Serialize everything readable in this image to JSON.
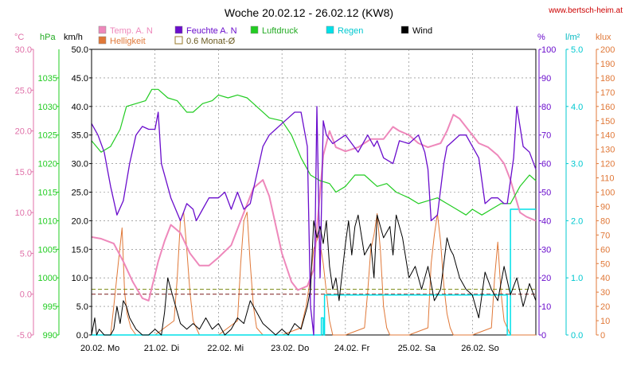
{
  "header": {
    "title": "Woche 20.02.12 - 26.02.12 (KW8)",
    "watermark": "www.bertsch-heim.at"
  },
  "chart_data": {
    "type": "line",
    "grid": true,
    "legend_placement": "top",
    "axes": {
      "temp": {
        "unit": "°C",
        "color": "#e070a8",
        "ylim": [
          -5,
          30
        ],
        "ticks": [
          "-5.0",
          "0.0",
          "5.0",
          "10.0",
          "15.0",
          "20.0",
          "25.0",
          "30.0"
        ]
      },
      "pressure": {
        "unit": "hPa",
        "color": "#22cc22",
        "ylim": [
          990,
          1040
        ],
        "ticks": [
          "990",
          "995",
          "1000",
          "1005",
          "1010",
          "1015",
          "1020",
          "1025",
          "1030",
          "1035"
        ]
      },
      "wind": {
        "unit": "km/h",
        "color": "#000000",
        "ylim": [
          0,
          50
        ],
        "ticks": [
          "0.0",
          "5.0",
          "10.0",
          "15.0",
          "20.0",
          "25.0",
          "30.0",
          "35.0",
          "40.0",
          "45.0",
          "50.0"
        ]
      },
      "humidity": {
        "unit": "%",
        "color": "#6a0dcc",
        "ylim": [
          0,
          100
        ],
        "ticks": [
          "0",
          "10",
          "20",
          "30",
          "40",
          "50",
          "60",
          "70",
          "80",
          "90",
          "100"
        ]
      },
      "rain": {
        "unit": "l/m²",
        "color": "#00c8d0",
        "ylim": [
          0,
          5
        ],
        "ticks": [
          "0.0",
          "1.0",
          "2.0",
          "3.0",
          "4.0",
          "5.0"
        ]
      },
      "lux": {
        "unit": "klux",
        "color": "#e07838",
        "ylim": [
          0,
          200
        ],
        "ticks": [
          "0",
          "10",
          "20",
          "30",
          "40",
          "50",
          "60",
          "70",
          "80",
          "90",
          "100",
          "110",
          "120",
          "130",
          "140",
          "150",
          "160",
          "170",
          "180",
          "190",
          "200"
        ]
      }
    },
    "x_ticks": [
      "20.02.",
      "Mo",
      "21.02.",
      "Di",
      "22.02.",
      "Mi",
      "23.02.",
      "Do",
      "24.02.",
      "Fr",
      "25.02.",
      "Sa",
      "26.02.",
      "So"
    ],
    "legend": [
      {
        "label": "Temp. A. N",
        "color": "#ee88bb"
      },
      {
        "label": "Feuchte A. N",
        "color": "#6a0dcc"
      },
      {
        "label": "Luftdruck",
        "color": "#22cc22"
      },
      {
        "label": "Regen",
        "color": "#00e0e8"
      },
      {
        "label": "Wind",
        "color": "#000000"
      },
      {
        "label": "Helligkeit",
        "color": "#e07838"
      },
      {
        "label": "0.6 Monat-Ø",
        "color": "#9a7a2a"
      }
    ],
    "series": [
      {
        "name": "Temp. A. N",
        "axis": "temp",
        "color": "#ee88bb",
        "width": 2,
        "x": [
          0,
          0.15,
          0.35,
          0.5,
          0.65,
          0.8,
          0.9,
          1.05,
          1.15,
          1.25,
          1.4,
          1.55,
          1.7,
          1.85,
          2.0,
          2.2,
          2.35,
          2.55,
          2.7,
          2.8,
          3.0,
          3.15,
          3.25,
          3.4,
          3.5,
          3.55,
          3.65,
          3.75,
          3.85,
          4.0,
          4.2,
          4.4,
          4.6,
          4.75,
          4.85,
          5.0,
          5.15,
          5.3,
          5.5,
          5.6,
          5.7,
          5.8,
          5.95,
          6.1,
          6.25,
          6.4,
          6.5,
          6.6,
          6.75,
          6.85,
          7.0
        ],
        "values": [
          7,
          6.8,
          6.2,
          4,
          1.5,
          -0.5,
          -0.8,
          4,
          6.5,
          8.5,
          7.5,
          5,
          3.5,
          3.5,
          4.5,
          6,
          9,
          13,
          14,
          12,
          5,
          1.5,
          0.5,
          1,
          3,
          8,
          17,
          20,
          18,
          17.5,
          18,
          19,
          19,
          20.5,
          20,
          19.5,
          18.5,
          18,
          18.5,
          20,
          22,
          21.5,
          20,
          18.5,
          18,
          17,
          16,
          14,
          10,
          9.5,
          9
        ]
      },
      {
        "name": "Feuchte A. N",
        "axis": "humidity",
        "color": "#6a0dcc",
        "width": 1.3,
        "x": [
          0,
          0.1,
          0.2,
          0.3,
          0.4,
          0.5,
          0.6,
          0.7,
          0.8,
          0.9,
          1.0,
          1.05,
          1.1,
          1.25,
          1.4,
          1.5,
          1.6,
          1.65,
          1.75,
          1.85,
          2.0,
          2.1,
          2.2,
          2.3,
          2.4,
          2.5,
          2.6,
          2.7,
          2.8,
          2.9,
          3.0,
          3.1,
          3.2,
          3.3,
          3.4,
          3.45,
          3.5,
          3.55,
          3.6,
          3.65,
          3.7,
          3.8,
          4.0,
          4.2,
          4.35,
          4.45,
          4.5,
          4.6,
          4.75,
          4.85,
          5.0,
          5.15,
          5.25,
          5.3,
          5.35,
          5.45,
          5.55,
          5.6,
          5.7,
          5.8,
          5.9,
          6.0,
          6.1,
          6.2,
          6.3,
          6.4,
          6.5,
          6.55,
          6.6,
          6.65,
          6.7,
          6.8,
          6.9,
          7.0
        ],
        "values": [
          74,
          70,
          64,
          52,
          42,
          47,
          60,
          70,
          73,
          72,
          72,
          78,
          60,
          48,
          40,
          46,
          44,
          40,
          44,
          48,
          48,
          50,
          44,
          50,
          44,
          46,
          56,
          66,
          70,
          72,
          74,
          76,
          78,
          78,
          66,
          10,
          0,
          80,
          20,
          75,
          70,
          67,
          70,
          64,
          70,
          66,
          68,
          62,
          60,
          68,
          67,
          70,
          64,
          58,
          40,
          42,
          60,
          66,
          68,
          70,
          70,
          66,
          62,
          46,
          48,
          48,
          46,
          46,
          54,
          62,
          80,
          66,
          64,
          58
        ]
      },
      {
        "name": "Luftdruck",
        "axis": "pressure",
        "color": "#22cc22",
        "width": 1.2,
        "x": [
          0,
          0.15,
          0.3,
          0.45,
          0.55,
          0.7,
          0.85,
          0.95,
          1.05,
          1.2,
          1.35,
          1.5,
          1.6,
          1.75,
          1.9,
          2.0,
          2.15,
          2.3,
          2.45,
          2.6,
          2.8,
          3.0,
          3.15,
          3.3,
          3.45,
          3.6,
          3.75,
          3.85,
          4.0,
          4.15,
          4.3,
          4.5,
          4.65,
          4.8,
          5.0,
          5.15,
          5.3,
          5.45,
          5.6,
          5.75,
          5.9,
          6.0,
          6.15,
          6.3,
          6.45,
          6.6,
          6.75,
          6.9,
          7.0
        ],
        "values": [
          1024,
          1022,
          1023,
          1026,
          1030,
          1030.5,
          1031,
          1033,
          1033,
          1031.5,
          1031,
          1029,
          1029,
          1030.5,
          1031,
          1032,
          1031.5,
          1032,
          1031.5,
          1030,
          1028,
          1027.5,
          1025,
          1021,
          1018,
          1017,
          1016.5,
          1015,
          1016,
          1018,
          1018,
          1016,
          1016.5,
          1015,
          1014,
          1013,
          1013.5,
          1014,
          1013,
          1012,
          1011,
          1012,
          1011,
          1012,
          1013,
          1013,
          1016,
          1018,
          1017
        ]
      },
      {
        "name": "Regen",
        "axis": "rain",
        "color": "#00e0e8",
        "width": 1.5,
        "step": true,
        "x": [
          0,
          3.62,
          3.62,
          3.65,
          3.65,
          3.67,
          3.67,
          6.55,
          6.55,
          6.6,
          6.6,
          6.65,
          6.65,
          7.0
        ],
        "values": [
          0,
          0,
          0.3,
          0.3,
          0,
          0,
          0.7,
          0.7,
          0,
          0,
          2.2,
          2.2,
          2.2,
          2.2
        ]
      },
      {
        "name": "Wind",
        "axis": "wind",
        "color": "#000000",
        "width": 1,
        "x": [
          0,
          0.05,
          0.08,
          0.12,
          0.2,
          0.3,
          0.35,
          0.4,
          0.45,
          0.5,
          0.55,
          0.6,
          0.65,
          0.7,
          0.8,
          0.9,
          1.0,
          1.1,
          1.15,
          1.2,
          1.25,
          1.3,
          1.35,
          1.4,
          1.5,
          1.6,
          1.7,
          1.8,
          1.9,
          2.0,
          2.1,
          2.2,
          2.3,
          2.4,
          2.5,
          2.6,
          2.7,
          2.8,
          2.9,
          3.0,
          3.1,
          3.2,
          3.3,
          3.4,
          3.45,
          3.5,
          3.55,
          3.6,
          3.65,
          3.7,
          3.75,
          3.8,
          3.85,
          3.9,
          4.0,
          4.05,
          4.1,
          4.15,
          4.2,
          4.3,
          4.4,
          4.45,
          4.5,
          4.6,
          4.7,
          4.75,
          4.8,
          4.9,
          5.0,
          5.1,
          5.2,
          5.3,
          5.4,
          5.5,
          5.6,
          5.65,
          5.7,
          5.8,
          5.9,
          6.0,
          6.1,
          6.2,
          6.3,
          6.4,
          6.5,
          6.6,
          6.7,
          6.8,
          6.9,
          7.0
        ],
        "values": [
          0,
          3,
          0,
          1,
          0,
          0,
          1,
          5,
          2,
          6,
          5,
          3,
          2,
          1,
          0,
          0,
          1,
          0,
          4,
          10,
          8,
          6,
          4,
          2,
          1,
          2,
          1,
          3,
          1,
          2,
          0,
          1,
          3,
          2,
          6,
          4,
          2,
          1,
          0,
          1,
          0,
          2,
          1,
          5,
          8,
          20,
          17,
          19,
          16,
          20,
          12,
          8,
          10,
          6,
          16,
          20,
          14,
          19,
          21,
          14,
          16,
          10,
          21,
          17,
          19,
          14,
          21,
          17,
          10,
          12,
          8,
          12,
          6,
          8,
          17,
          15,
          14,
          10,
          8,
          7,
          3,
          11,
          8,
          6,
          12,
          7,
          10,
          5,
          9,
          6
        ]
      },
      {
        "name": "Helligkeit",
        "axis": "lux",
        "color": "#e07838",
        "width": 1,
        "x": [
          0,
          0.3,
          0.35,
          0.42,
          0.48,
          0.52,
          0.56,
          0.62,
          0.7,
          0.8,
          1.0,
          1.3,
          1.35,
          1.4,
          1.45,
          1.5,
          1.55,
          1.6,
          1.7,
          1.8,
          2.0,
          2.3,
          2.35,
          2.4,
          2.45,
          2.5,
          2.55,
          2.6,
          2.7,
          2.8,
          3.0,
          3.3,
          3.38,
          3.45,
          3.5,
          3.58,
          3.65,
          3.75,
          3.8,
          3.9,
          4.0,
          4.3,
          4.35,
          4.4,
          4.45,
          4.5,
          4.55,
          4.6,
          4.65,
          4.7,
          4.8,
          5.0,
          5.3,
          5.35,
          5.4,
          5.45,
          5.5,
          5.55,
          5.6,
          5.65,
          5.7,
          5.8,
          6.0,
          6.3,
          6.35,
          6.4,
          6.45,
          6.5,
          6.55,
          6.6,
          6.65,
          6.7,
          6.8,
          7.0
        ],
        "values": [
          0,
          0,
          20,
          50,
          75,
          30,
          15,
          5,
          0,
          0,
          0,
          10,
          40,
          80,
          86,
          60,
          30,
          10,
          0,
          0,
          0,
          10,
          50,
          80,
          86,
          50,
          20,
          5,
          0,
          0,
          0,
          5,
          20,
          40,
          60,
          70,
          50,
          10,
          0,
          0,
          0,
          5,
          30,
          60,
          70,
          85,
          60,
          20,
          5,
          0,
          0,
          0,
          5,
          50,
          70,
          85,
          65,
          35,
          15,
          5,
          0,
          0,
          0,
          5,
          40,
          65,
          30,
          10,
          5,
          0,
          0,
          0,
          0,
          0
        ]
      },
      {
        "name": "0.6 Monat-Ø (temp)",
        "axis": "temp",
        "color": "#7a1a1a",
        "width": 1,
        "dash": "5,3",
        "x": [
          0,
          7
        ],
        "values": [
          0.0,
          0.0
        ]
      },
      {
        "name": "0.6 Monat-Ø (pressure)",
        "axis": "pressure",
        "color": "#7a8a10",
        "width": 1,
        "dash": "5,3",
        "x": [
          0,
          7
        ],
        "values": [
          998,
          998
        ]
      }
    ]
  }
}
